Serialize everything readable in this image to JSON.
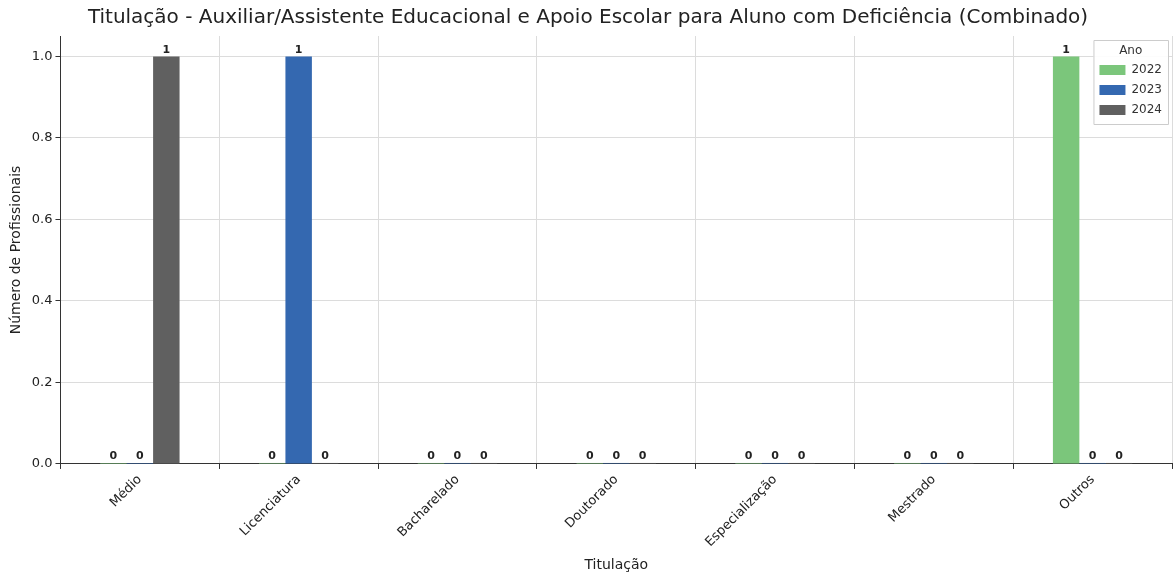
{
  "chart_data": {
    "type": "bar",
    "title": "Titulação - Auxiliar/Assistente Educacional e Apoio Escolar para Aluno com Deficiência (Combinado)",
    "xlabel": "Titulação",
    "ylabel": "Número de Profissionais",
    "legend_title": "Ano",
    "categories": [
      "Médio",
      "Licenciatura",
      "Bacharelado",
      "Doutorado",
      "Especialização",
      "Mestrado",
      "Outros"
    ],
    "series": [
      {
        "name": "2022",
        "color": "#7bc67b",
        "values": [
          0,
          0,
          0,
          0,
          0,
          0,
          1
        ]
      },
      {
        "name": "2023",
        "color": "#3468b0",
        "values": [
          0,
          1,
          0,
          0,
          0,
          0,
          0
        ]
      },
      {
        "name": "2024",
        "color": "#606060",
        "values": [
          1,
          0,
          0,
          0,
          0,
          0,
          0
        ]
      }
    ],
    "ylim": [
      0,
      1.05
    ],
    "yticks": [
      {
        "value": 0,
        "label": "0.0"
      },
      {
        "value": 0.2,
        "label": "0.2"
      },
      {
        "value": 0.4,
        "label": "0.4"
      },
      {
        "value": 0.6,
        "label": "0.6"
      },
      {
        "value": 0.8,
        "label": "0.8"
      },
      {
        "value": 1,
        "label": "1.0"
      }
    ],
    "grid": true,
    "legend": "top right",
    "data_labels": true
  }
}
